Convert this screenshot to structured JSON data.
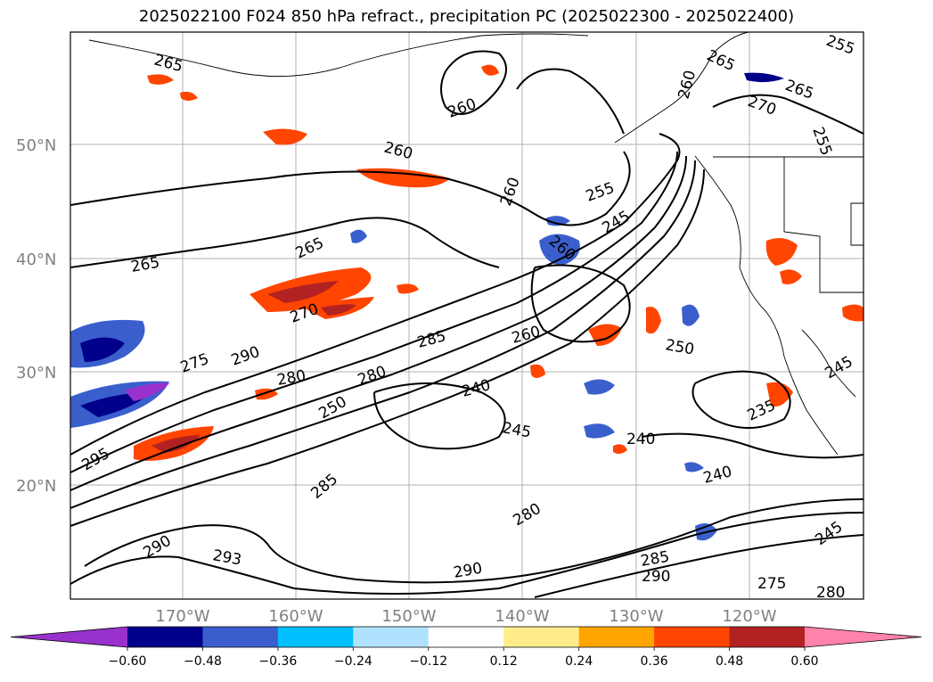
{
  "title": "2025022100 F024 850 hPa refract., precipitation PC (2025022300 - 2025022400)",
  "map": {
    "lat_labels": [
      "50°N",
      "40°N",
      "30°N",
      "20°N"
    ],
    "lon_labels": [
      "170°W",
      "160°W",
      "150°W",
      "140°W",
      "130°W",
      "120°W"
    ],
    "gridlines": true,
    "contour_labels": [
      "265",
      "260",
      "260",
      "260",
      "255",
      "245",
      "260",
      "265",
      "265",
      "270",
      "290",
      "275",
      "280",
      "285",
      "280",
      "260",
      "250",
      "240",
      "245",
      "240",
      "250",
      "235",
      "245",
      "240",
      "245",
      "295",
      "290",
      "285",
      "290",
      "280",
      "293",
      "290",
      "285",
      "275",
      "280",
      "265",
      "270",
      "255",
      "265",
      "255",
      "260"
    ]
  },
  "colorbar": {
    "ticks": [
      "−0.60",
      "−0.48",
      "−0.36",
      "−0.24",
      "−0.12",
      "0.12",
      "0.24",
      "0.36",
      "0.48",
      "0.60"
    ],
    "colors": [
      "#9932cc",
      "#00008b",
      "#3a5fcd",
      "#00bfff",
      "#b0e2ff",
      "#ffffff",
      "#ffec8b",
      "#ffa500",
      "#ff4500",
      "#b22222",
      "#ff82ab"
    ],
    "extend": "both"
  }
}
